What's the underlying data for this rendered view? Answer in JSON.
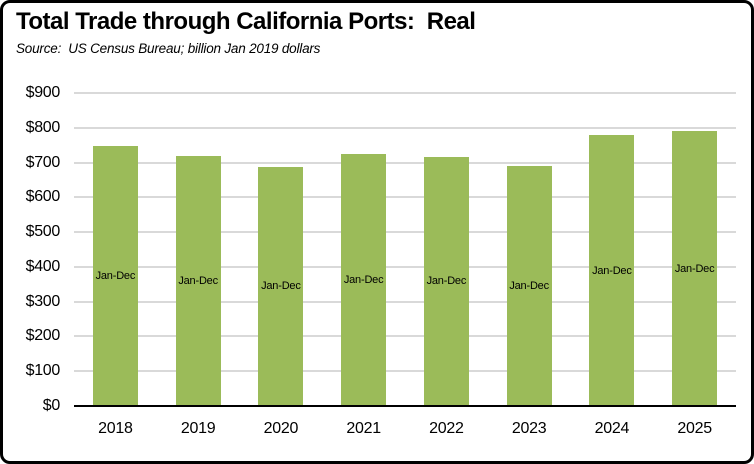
{
  "chart_data": {
    "type": "bar",
    "title": "Total Trade through California Ports:  Real",
    "source_note": "Source:  US Census Bureau; billion Jan 2019 dollars",
    "categories": [
      "2018",
      "2019",
      "2020",
      "2021",
      "2022",
      "2023",
      "2024",
      "2025"
    ],
    "values": [
      748,
      719,
      688,
      724,
      717,
      690,
      778,
      790
    ],
    "bar_label": "Jan-Dec",
    "xlabel": "",
    "ylabel": "",
    "ylim": [
      0,
      900
    ],
    "ytick_step": 100,
    "ytick_labels": [
      "$0",
      "$100",
      "$200",
      "$300",
      "$400",
      "$500",
      "$600",
      "$700",
      "$800",
      "$900"
    ],
    "grid": true,
    "legend": false,
    "colors": {
      "bar_fill": "#9BBB59",
      "gridline": "#D9D9D9",
      "axis_line": "#000000",
      "text": "#000000",
      "frame_border": "#000000",
      "background": "#FFFFFF"
    }
  }
}
